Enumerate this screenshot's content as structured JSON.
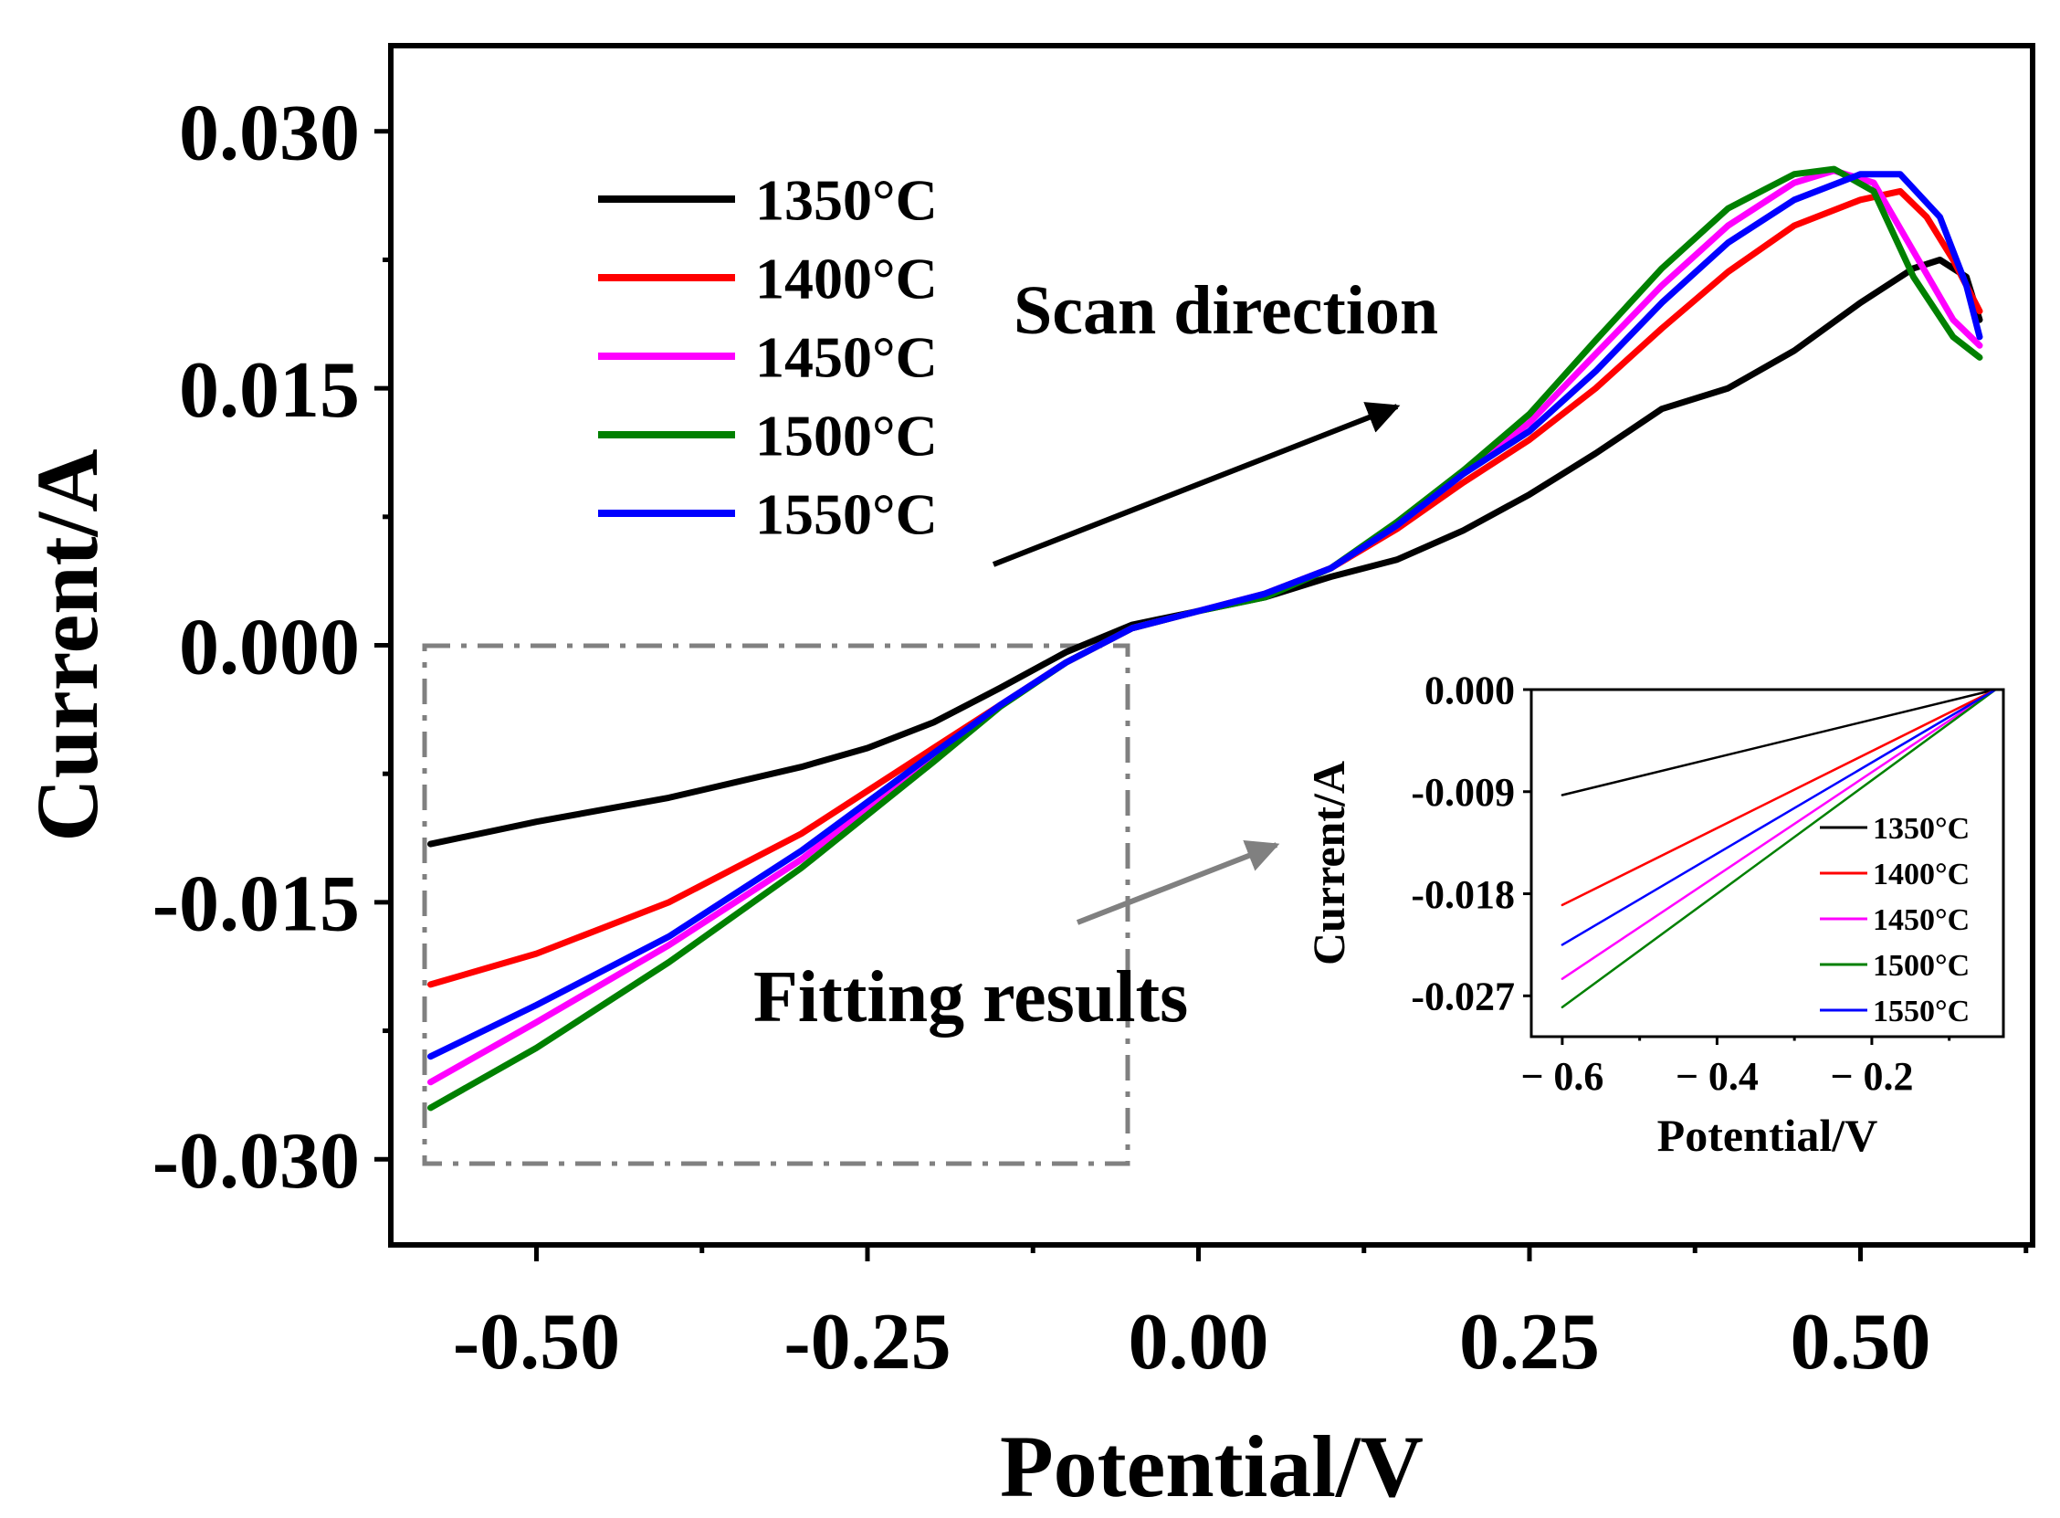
{
  "chart_data": [
    {
      "id": "main",
      "type": "line",
      "title": "",
      "xlabel": "Potential/V",
      "ylabel": "Current/A",
      "xlim": [
        -0.61,
        0.63
      ],
      "ylim": [
        -0.035,
        0.035
      ],
      "xticks": [
        -0.5,
        -0.25,
        0.0,
        0.25,
        0.5
      ],
      "xtick_labels": [
        "-0.50",
        "-0.25",
        "0.00",
        "0.25",
        "0.50"
      ],
      "yticks": [
        -0.03,
        -0.015,
        0.0,
        0.015,
        0.03
      ],
      "ytick_labels": [
        "-0.030",
        "-0.015",
        "0.000",
        "0.015",
        "0.030"
      ],
      "legend_position": "top-left",
      "series": [
        {
          "name": "1350°C",
          "color": "#000000",
          "x": [
            -0.58,
            -0.5,
            -0.4,
            -0.3,
            -0.25,
            -0.2,
            -0.15,
            -0.1,
            -0.05,
            0.0,
            0.05,
            0.1,
            0.15,
            0.2,
            0.25,
            0.3,
            0.35,
            0.4,
            0.45,
            0.5,
            0.54,
            0.56,
            0.58,
            0.59
          ],
          "y": [
            -0.0116,
            -0.0103,
            -0.0089,
            -0.0071,
            -0.006,
            -0.0045,
            -0.0025,
            -0.0004,
            0.0012,
            0.002,
            0.0028,
            0.004,
            0.005,
            0.0067,
            0.0088,
            0.0112,
            0.0138,
            0.015,
            0.0172,
            0.02,
            0.022,
            0.0225,
            0.0215,
            0.019
          ]
        },
        {
          "name": "1400°C",
          "color": "#ff0000",
          "x": [
            -0.58,
            -0.5,
            -0.4,
            -0.3,
            -0.2,
            -0.15,
            -0.1,
            -0.05,
            0.0,
            0.05,
            0.1,
            0.15,
            0.2,
            0.25,
            0.3,
            0.35,
            0.4,
            0.45,
            0.5,
            0.53,
            0.55,
            0.57,
            0.59
          ],
          "y": [
            -0.0198,
            -0.018,
            -0.015,
            -0.011,
            -0.006,
            -0.0035,
            -0.001,
            0.001,
            0.002,
            0.003,
            0.0045,
            0.0068,
            0.0095,
            0.012,
            0.015,
            0.0185,
            0.0218,
            0.0245,
            0.026,
            0.0265,
            0.025,
            0.0225,
            0.0195
          ]
        },
        {
          "name": "1450°C",
          "color": "#ff00ff",
          "x": [
            -0.58,
            -0.5,
            -0.4,
            -0.3,
            -0.2,
            -0.15,
            -0.1,
            -0.05,
            0.0,
            0.05,
            0.1,
            0.15,
            0.2,
            0.25,
            0.3,
            0.35,
            0.4,
            0.45,
            0.48,
            0.51,
            0.54,
            0.57,
            0.59
          ],
          "y": [
            -0.0255,
            -0.022,
            -0.0175,
            -0.0125,
            -0.0065,
            -0.0035,
            -0.001,
            0.001,
            0.002,
            0.003,
            0.0045,
            0.007,
            0.01,
            0.013,
            0.017,
            0.021,
            0.0245,
            0.027,
            0.0277,
            0.027,
            0.023,
            0.019,
            0.0175
          ]
        },
        {
          "name": "1500°C",
          "color": "#008000",
          "x": [
            -0.58,
            -0.5,
            -0.4,
            -0.3,
            -0.2,
            -0.15,
            -0.1,
            -0.05,
            0.0,
            0.05,
            0.1,
            0.15,
            0.2,
            0.25,
            0.3,
            0.35,
            0.4,
            0.45,
            0.48,
            0.51,
            0.54,
            0.57,
            0.59
          ],
          "y": [
            -0.027,
            -0.0235,
            -0.0185,
            -0.013,
            -0.0068,
            -0.0036,
            -0.001,
            0.001,
            0.002,
            0.0028,
            0.0045,
            0.0072,
            0.0102,
            0.0135,
            0.0178,
            0.022,
            0.0255,
            0.0275,
            0.0278,
            0.0265,
            0.0215,
            0.018,
            0.0168
          ]
        },
        {
          "name": "1550°C",
          "color": "#0000ff",
          "x": [
            -0.58,
            -0.5,
            -0.4,
            -0.3,
            -0.2,
            -0.15,
            -0.1,
            -0.05,
            0.0,
            0.05,
            0.1,
            0.15,
            0.2,
            0.25,
            0.3,
            0.35,
            0.4,
            0.45,
            0.5,
            0.53,
            0.56,
            0.58,
            0.59
          ],
          "y": [
            -0.024,
            -0.021,
            -0.017,
            -0.012,
            -0.0063,
            -0.0035,
            -0.001,
            0.001,
            0.002,
            0.003,
            0.0045,
            0.007,
            0.01,
            0.0125,
            0.016,
            0.02,
            0.0235,
            0.026,
            0.0275,
            0.0275,
            0.025,
            0.021,
            0.018
          ]
        }
      ],
      "annotations": [
        {
          "id": "scan",
          "text": "Scan direction"
        },
        {
          "id": "fit",
          "text": "Fitting results"
        }
      ]
    },
    {
      "id": "inset",
      "type": "line",
      "title": "",
      "xlabel": "Potential/V",
      "ylabel": "Current/A",
      "xlim": [
        -0.64,
        -0.03
      ],
      "ylim": [
        -0.0306,
        0.0
      ],
      "xticks": [
        -0.6,
        -0.4,
        -0.2
      ],
      "xtick_labels": [
        "− 0.6",
        "− 0.4",
        "− 0.2"
      ],
      "yticks": [
        0.0,
        -0.009,
        -0.018,
        -0.027
      ],
      "ytick_labels": [
        "0.000",
        "-0.009",
        "-0.018",
        "-0.027"
      ],
      "legend_position": "bottom-right",
      "series": [
        {
          "name": "1350°C",
          "color": "#000000",
          "x": [
            -0.6,
            -0.04
          ],
          "y": [
            -0.0093,
            0.0
          ]
        },
        {
          "name": "1400°C",
          "color": "#ff0000",
          "x": [
            -0.6,
            -0.04
          ],
          "y": [
            -0.019,
            0.0
          ]
        },
        {
          "name": "1450°C",
          "color": "#ff00ff",
          "x": [
            -0.6,
            -0.04
          ],
          "y": [
            -0.0255,
            0.0
          ]
        },
        {
          "name": "1500°C",
          "color": "#008000",
          "x": [
            -0.6,
            -0.04
          ],
          "y": [
            -0.028,
            0.0
          ]
        },
        {
          "name": "1550°C",
          "color": "#0000ff",
          "x": [
            -0.6,
            -0.04
          ],
          "y": [
            -0.0225,
            0.0
          ]
        }
      ]
    }
  ]
}
